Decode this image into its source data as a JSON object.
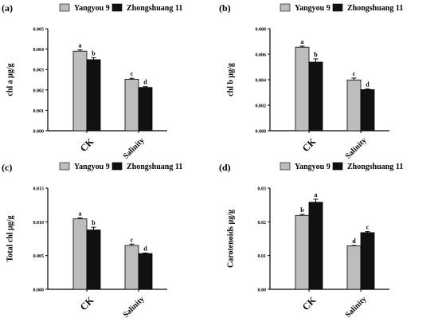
{
  "chart_data": [
    {
      "type": "bar",
      "panel_label": "(a)",
      "ylabel": "chl a μg/g",
      "ylim": [
        0,
        0.005
      ],
      "yticks": [
        "0.000",
        "0.001",
        "0.002",
        "0.003",
        "0.004",
        "0.005"
      ],
      "categories": [
        "CK",
        "Salinity"
      ],
      "series": [
        {
          "name": "Yangyou 9",
          "color": "#bdbdbd",
          "values": [
            0.0039,
            0.00252
          ],
          "errors": [
            6e-05,
            5e-05
          ],
          "letters": [
            "a",
            "c"
          ]
        },
        {
          "name": "Zhongshuang 11",
          "color": "#111111",
          "values": [
            0.00348,
            0.00212
          ],
          "errors": [
            0.0001,
            4e-05
          ],
          "letters": [
            "b",
            "d"
          ]
        }
      ],
      "legend": "top"
    },
    {
      "type": "bar",
      "panel_label": "(b)",
      "ylabel": "chl b μg/g",
      "ylim": [
        0,
        0.008
      ],
      "yticks": [
        "0.000",
        "0.002",
        "0.004",
        "0.006",
        "0.008"
      ],
      "categories": [
        "CK",
        "Salinity"
      ],
      "series": [
        {
          "name": "Yangyou 9",
          "color": "#bdbdbd",
          "values": [
            0.00655,
            0.00398
          ],
          "errors": [
            8e-05,
            0.00015
          ],
          "letters": [
            "a",
            "c"
          ]
        },
        {
          "name": "Zhongshuang 11",
          "color": "#111111",
          "values": [
            0.00538,
            0.00322
          ],
          "errors": [
            0.00025,
            5e-05
          ],
          "letters": [
            "b",
            "d"
          ]
        }
      ],
      "legend": "top"
    },
    {
      "type": "bar",
      "panel_label": "(c)",
      "ylabel": "Total chl μg/g",
      "ylim": [
        0,
        0.015
      ],
      "yticks": [
        "0.000",
        "0.005",
        "0.010",
        "0.015"
      ],
      "categories": [
        "CK",
        "Salinity"
      ],
      "series": [
        {
          "name": "Yangyou 9",
          "color": "#bdbdbd",
          "values": [
            0.01045,
            0.0065
          ],
          "errors": [
            0.00012,
            0.0002
          ],
          "letters": [
            "a",
            "c"
          ]
        },
        {
          "name": "Zhongshuang 11",
          "color": "#111111",
          "values": [
            0.0088,
            0.0053
          ],
          "errors": [
            0.0004,
            8e-05
          ],
          "letters": [
            "b",
            "d"
          ]
        }
      ],
      "legend": "top"
    },
    {
      "type": "bar",
      "panel_label": "(d)",
      "ylabel": "Carotenoids μg/g",
      "ylim": [
        0,
        0.03
      ],
      "yticks": [
        "0.00",
        "0.01",
        "0.02",
        "0.03"
      ],
      "categories": [
        "CK",
        "Salinity"
      ],
      "series": [
        {
          "name": "Yangyou 9",
          "color": "#bdbdbd",
          "values": [
            0.0219,
            0.0129
          ],
          "errors": [
            0.0003,
            0.0001
          ],
          "letters": [
            "b",
            "d"
          ]
        },
        {
          "name": "Zhongshuang 11",
          "color": "#111111",
          "values": [
            0.0258,
            0.0168
          ],
          "errors": [
            0.0009,
            0.0003
          ],
          "letters": [
            "a",
            "c"
          ]
        }
      ],
      "legend": "top"
    }
  ]
}
